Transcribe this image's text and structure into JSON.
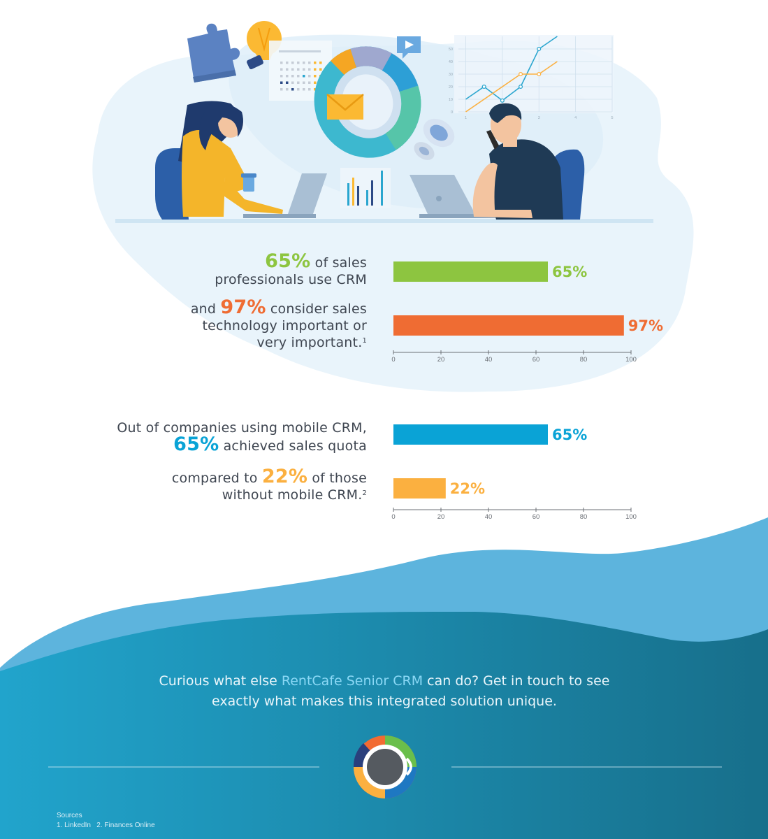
{
  "colors": {
    "green": "#8dc540",
    "orange": "#ef6c33",
    "blue": "#0aa3d6",
    "yellow": "#fbb040",
    "axis": "#6b6f75",
    "text": "#3f4651",
    "ocean": "#1a86a8",
    "wave": "#5db4dd",
    "blob": "#e6f2fb"
  },
  "icons": [
    "puzzle-icon",
    "lightbulb-icon",
    "play-icon",
    "envelope-icon",
    "donut-chart-icon",
    "gear-icon",
    "line-chart-icon",
    "bar-chart-icon",
    "laptop-icon",
    "coffee-cup-icon"
  ],
  "stats": {
    "s1": {
      "big": "65%",
      "line1_after": " of sales",
      "line2": "professionals use CRM"
    },
    "s2": {
      "before": "and ",
      "big": "97%",
      "line1_after": " consider sales",
      "line2": "technology important or",
      "line3": "very important.",
      "sup": "1"
    },
    "s3": {
      "line1": "Out of companies using mobile CRM,",
      "big": "65%",
      "line2_after": " achieved sales quota"
    },
    "s4": {
      "before": "compared to ",
      "big": "22%",
      "line1_after": " of those",
      "line2": "without mobile CRM.",
      "sup": "2"
    }
  },
  "chart_data": [
    {
      "type": "bar",
      "orientation": "horizontal",
      "values": [
        65,
        97
      ],
      "data_labels": [
        "65%",
        "97%"
      ],
      "colors": [
        "#8dc540",
        "#ef6c33"
      ],
      "xlim": [
        0,
        100
      ],
      "ticks": [
        0,
        20,
        40,
        60,
        80,
        100
      ]
    },
    {
      "type": "bar",
      "orientation": "horizontal",
      "values": [
        65,
        22
      ],
      "data_labels": [
        "65%",
        "22%"
      ],
      "colors": [
        "#0aa3d6",
        "#fbb040"
      ],
      "xlim": [
        0,
        100
      ],
      "ticks": [
        0,
        20,
        40,
        60,
        80,
        100
      ]
    },
    {
      "type": "line",
      "role": "decorative illustration",
      "ylim": [
        0,
        50
      ],
      "yticks": [
        0,
        10,
        20,
        30,
        40,
        50
      ],
      "xticks": [
        "1",
        "2",
        "3",
        "4",
        "5"
      ],
      "series": [
        {
          "color": "#2ba6cf",
          "x": [
            1,
            1.5,
            2,
            2.5,
            3,
            3.5
          ],
          "y": [
            10,
            20,
            9,
            20,
            50,
            60
          ]
        },
        {
          "color": "#fbb040",
          "x": [
            1,
            2.5,
            3,
            3.5
          ],
          "y": [
            0,
            30,
            30,
            40
          ]
        }
      ]
    }
  ],
  "cta": {
    "pre": "Curious what else ",
    "highlight": "RentCafe Senior CRM",
    "post": " can do? Get in touch to see",
    "line2": "exactly what makes this integrated solution unique."
  },
  "sources": {
    "title": "Sources",
    "items": [
      "1. LinkedIn",
      "2. Finances Online"
    ]
  }
}
